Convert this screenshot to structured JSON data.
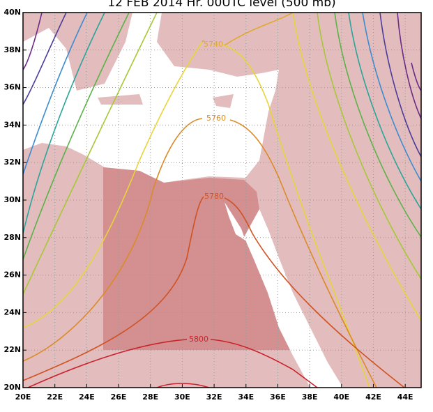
{
  "map": {
    "title": "12 FEB 2014 Hr. 00UTC      level (500 mb)",
    "xlim": [
      20,
      45
    ],
    "ylim": [
      20,
      40
    ],
    "xticks": [
      {
        "value": 20,
        "label": "20E"
      },
      {
        "value": 22,
        "label": "22E"
      },
      {
        "value": 24,
        "label": "24E"
      },
      {
        "value": 26,
        "label": "26E"
      },
      {
        "value": 28,
        "label": "28E"
      },
      {
        "value": 30,
        "label": "30E"
      },
      {
        "value": 32,
        "label": "32E"
      },
      {
        "value": 34,
        "label": "34E"
      },
      {
        "value": 36,
        "label": "36E"
      },
      {
        "value": 38,
        "label": "38E"
      },
      {
        "value": 40,
        "label": "40E"
      },
      {
        "value": 42,
        "label": "42E"
      },
      {
        "value": 44,
        "label": "44E"
      }
    ],
    "yticks": [
      {
        "value": 20,
        "label": "20N"
      },
      {
        "value": 22,
        "label": "22N"
      },
      {
        "value": 24,
        "label": "24N"
      },
      {
        "value": 26,
        "label": "26N"
      },
      {
        "value": 28,
        "label": "28N"
      },
      {
        "value": 30,
        "label": "30N"
      },
      {
        "value": 32,
        "label": "32N"
      },
      {
        "value": 34,
        "label": "34N"
      },
      {
        "value": 36,
        "label": "36N"
      },
      {
        "value": 38,
        "label": "38N"
      },
      {
        "value": 40,
        "label": "40N"
      }
    ],
    "grid": true,
    "contours": [
      {
        "level": 5740,
        "label": "5740",
        "color": "#e0a92e"
      },
      {
        "level": 5760,
        "label": "5760",
        "color": "#da8a27"
      },
      {
        "level": 5780,
        "label": "5780",
        "color": "#cf5222"
      },
      {
        "level": 5800,
        "label": "5800",
        "color": "#c8232c"
      }
    ]
  }
}
